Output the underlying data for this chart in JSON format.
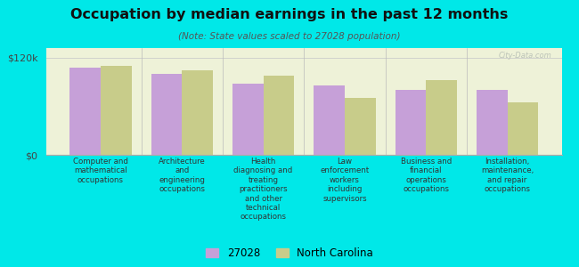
{
  "title": "Occupation by median earnings in the past 12 months",
  "subtitle": "(Note: State values scaled to 27028 population)",
  "background_outer": "#00e8e8",
  "background_inner": "#eef2d8",
  "categories": [
    "Computer and\nmathematical\noccupations",
    "Architecture\nand\nengineering\noccupations",
    "Health\ndiagnosing and\ntreating\npractitioners\nand other\ntechnical\noccupations",
    "Law\nenforcement\nworkers\nincluding\nsupervisors",
    "Business and\nfinancial\noperations\noccupations",
    "Installation,\nmaintenance,\nand repair\noccupations"
  ],
  "values_27028": [
    108000,
    100000,
    88000,
    86000,
    80000,
    80000
  ],
  "values_nc": [
    110000,
    104000,
    98000,
    70000,
    92000,
    65000
  ],
  "color_27028": "#c6a0d8",
  "color_nc": "#c8cc8a",
  "legend_27028": "27028",
  "legend_nc": "North Carolina",
  "ytick_label": "$120k",
  "y0_label": "$0",
  "ylim": [
    0,
    132000
  ],
  "ytick_val": 120000,
  "watermark": "City-Data.com"
}
